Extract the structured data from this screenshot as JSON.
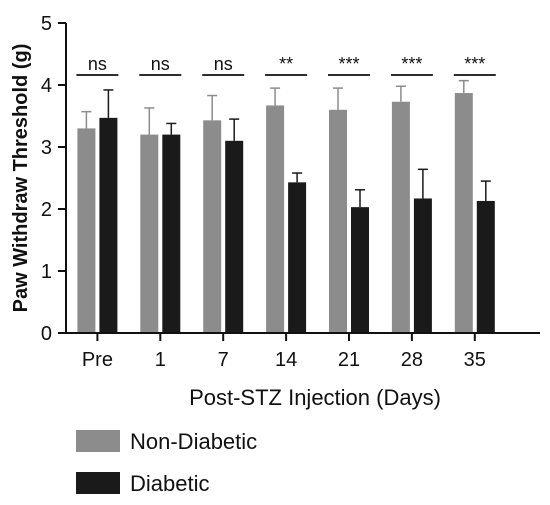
{
  "chart_data": {
    "type": "bar",
    "categories": [
      "Pre",
      "1",
      "7",
      "14",
      "21",
      "28",
      "35"
    ],
    "series": [
      {
        "name": "Non-Diabetic",
        "color": "#8c8c8c",
        "values": [
          3.3,
          3.2,
          3.43,
          3.67,
          3.6,
          3.73,
          3.87
        ],
        "errors": [
          0.27,
          0.43,
          0.4,
          0.28,
          0.35,
          0.25,
          0.2
        ]
      },
      {
        "name": "Diabetic",
        "color": "#1a1a1a",
        "values": [
          3.47,
          3.2,
          3.1,
          2.43,
          2.03,
          2.17,
          2.13
        ],
        "errors": [
          0.45,
          0.18,
          0.35,
          0.15,
          0.28,
          0.47,
          0.32
        ]
      }
    ],
    "significance": [
      "ns",
      "ns",
      "ns",
      "**",
      "***",
      "***",
      "***"
    ],
    "xlabel": "Post-STZ Injection (Days)",
    "ylabel": "Paw Withdraw Threshold (g)",
    "ylim": [
      0,
      5
    ],
    "yticks": [
      "0",
      "1",
      "2",
      "3",
      "4",
      "5"
    ],
    "grid": false,
    "legend_position": "bottom-left"
  }
}
